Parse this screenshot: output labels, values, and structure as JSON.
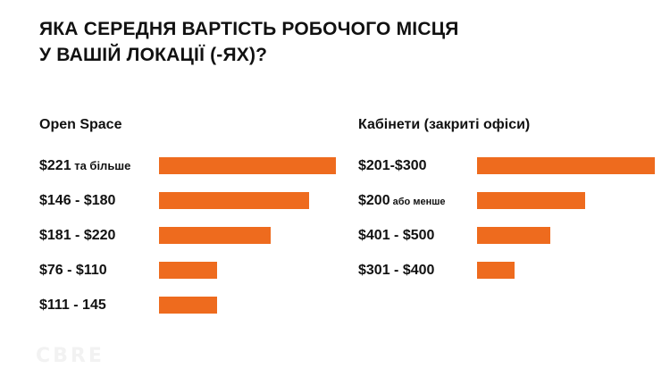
{
  "title_line1": "ЯКА СЕРЕДНЯ ВАРТІСТЬ РОБОЧОГО МІСЦЯ",
  "title_line2": "У ВАШІЙ ЛОКАЦІЇ (-ЯХ)?",
  "watermark": "CBRE",
  "colors": {
    "bar": "#ee6b1e",
    "text": "#111111"
  },
  "chart_data": [
    {
      "type": "bar",
      "orientation": "horizontal",
      "title": "Open Space",
      "categories": [
        {
          "main": "$221",
          "suffix": " та більше"
        },
        {
          "main": "$146 - $180",
          "suffix": ""
        },
        {
          "main": "$181 - $220",
          "suffix": ""
        },
        {
          "main": "$76 - $110",
          "suffix": ""
        },
        {
          "main": "$111 - 145",
          "suffix": ""
        }
      ],
      "values": [
        100,
        85,
        63,
        33,
        33
      ],
      "xlim": [
        0,
        100
      ]
    },
    {
      "type": "bar",
      "orientation": "horizontal",
      "title": "Кабінети (закриті офіси)",
      "categories": [
        {
          "main": "$201-$300",
          "suffix": ""
        },
        {
          "main": "$200",
          "suffix": " або менше"
        },
        {
          "main": "$401 - $500",
          "suffix": ""
        },
        {
          "main": "$301 - $400",
          "suffix": ""
        }
      ],
      "values": [
        100,
        61,
        41,
        21
      ],
      "xlim": [
        0,
        100
      ]
    }
  ]
}
